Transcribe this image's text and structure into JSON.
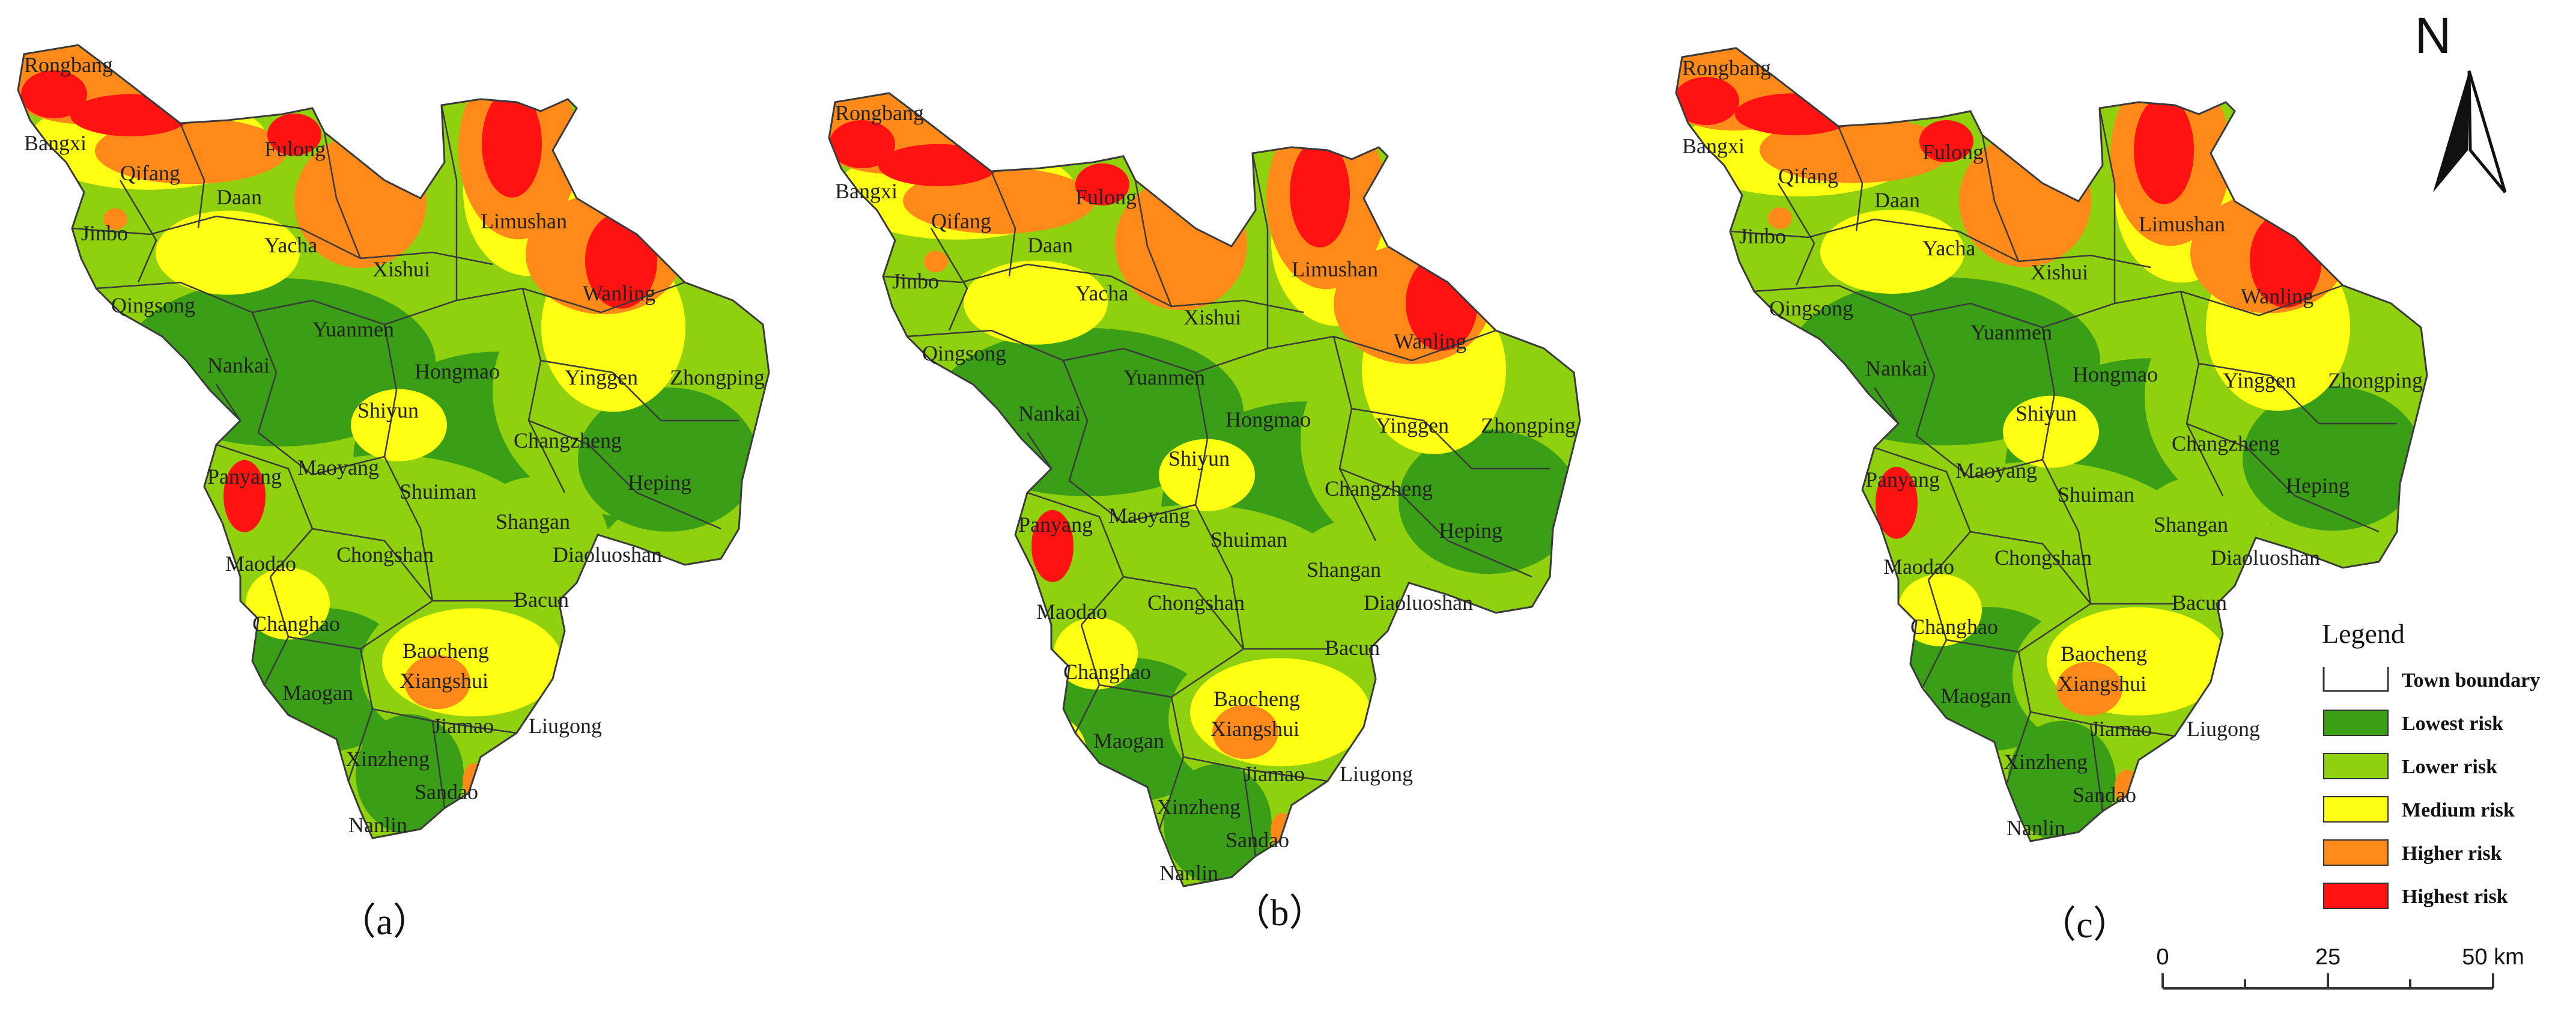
{
  "colors": {
    "lowest": "#3a9e17",
    "lower": "#8fd10f",
    "medium": "#ffff14",
    "higher": "#ff8a1a",
    "highest": "#ff1212",
    "boundary": "#3a3a3a"
  },
  "panels": [
    {
      "caption": "（a）"
    },
    {
      "caption": "（b）"
    },
    {
      "caption": "（c）"
    }
  ],
  "towns": [
    "Rongbang",
    "Bangxi",
    "Fulong",
    "Qifang",
    "Daan",
    "Jinbo",
    "Yacha",
    "Xishui",
    "Limushan",
    "Wanling",
    "Qingsong",
    "Yuanmen",
    "Nankai",
    "Hongmao",
    "Yinggen",
    "Zhongping",
    "Shiyun",
    "Changzheng",
    "Maoyang",
    "Panyang",
    "Heping",
    "Shuiman",
    "Shangan",
    "Diaoluoshan",
    "Maodao",
    "Chongshan",
    "Bacun",
    "Changhao",
    "Baocheng",
    "Xiangshui",
    "Maogan",
    "Jiamao",
    "Liugong",
    "Xinzheng",
    "Sandao",
    "Nanlin"
  ],
  "legend": {
    "title": "Legend",
    "items": [
      {
        "label": "Town boundary",
        "key": "boundary"
      },
      {
        "label": "Lowest risk",
        "key": "lowest"
      },
      {
        "label": "Lower risk",
        "key": "lower"
      },
      {
        "label": "Medium risk",
        "key": "medium"
      },
      {
        "label": "Higher risk",
        "key": "higher"
      },
      {
        "label": "Highest risk",
        "key": "highest"
      }
    ]
  },
  "north_arrow": {
    "label": "N"
  },
  "scale_bar": {
    "ticks": [
      "0",
      "25",
      "50 km"
    ]
  }
}
